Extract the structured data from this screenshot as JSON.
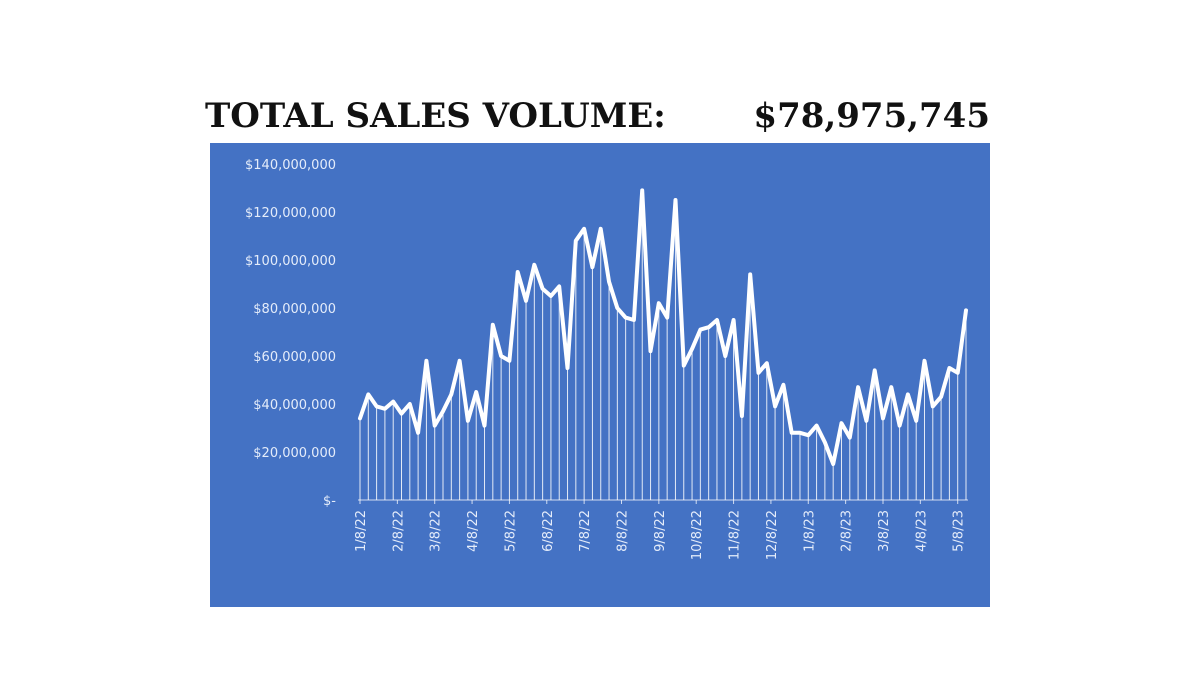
{
  "header": {
    "label": "TOTAL SALES VOLUME:",
    "value": "$78,975,745"
  },
  "colors": {
    "panel": "#4472c4",
    "line": "#ffffff",
    "text": "#111111"
  },
  "chart_data": {
    "type": "line",
    "title": "",
    "xlabel": "",
    "ylabel": "",
    "ylim": [
      0,
      140000000
    ],
    "y_ticks": [
      0,
      20000000,
      40000000,
      60000000,
      80000000,
      100000000,
      120000000,
      140000000
    ],
    "y_tick_labels": [
      "$-",
      "$20,000,000",
      "$40,000,000",
      "$60,000,000",
      "$80,000,000",
      "$100,000,000",
      "$120,000,000",
      "$140,000,000"
    ],
    "grid": false,
    "legend": "none",
    "drop_lines": true,
    "x_tick_labels": [
      "1/8/22",
      "2/8/22",
      "3/8/22",
      "4/8/22",
      "5/8/22",
      "6/8/22",
      "7/8/22",
      "8/8/22",
      "9/8/22",
      "10/8/22",
      "11/8/22",
      "12/8/22",
      "1/8/23",
      "2/8/23",
      "3/8/23",
      "4/8/23",
      "5/8/23"
    ],
    "x_tick_positions": [
      0,
      4.5,
      9,
      13.5,
      18,
      22.5,
      27,
      31.5,
      36,
      40.5,
      45,
      49.5,
      54,
      58.5,
      63,
      67.5,
      72
    ],
    "series": [
      {
        "values": [
          34000000,
          44000000,
          39000000,
          38000000,
          41000000,
          36000000,
          40000000,
          28000000,
          58000000,
          31000000,
          37000000,
          44000000,
          58000000,
          33000000,
          45000000,
          31000000,
          73000000,
          60000000,
          58000000,
          95000000,
          83000000,
          98000000,
          88000000,
          85000000,
          89000000,
          55000000,
          108000000,
          113000000,
          97000000,
          113000000,
          91000000,
          80000000,
          76000000,
          75000000,
          129000000,
          62000000,
          82000000,
          76000000,
          125000000,
          56000000,
          63000000,
          71000000,
          72000000,
          75000000,
          60000000,
          75000000,
          35000000,
          94000000,
          53000000,
          57000000,
          39000000,
          48000000,
          28000000,
          28000000,
          27000000,
          31000000,
          24000000,
          15000000,
          32000000,
          26000000,
          47000000,
          33000000,
          54000000,
          34000000,
          47000000,
          31000000,
          44000000,
          33000000,
          58000000,
          39000000,
          43000000,
          55000000,
          53000000,
          79000000
        ]
      }
    ]
  }
}
